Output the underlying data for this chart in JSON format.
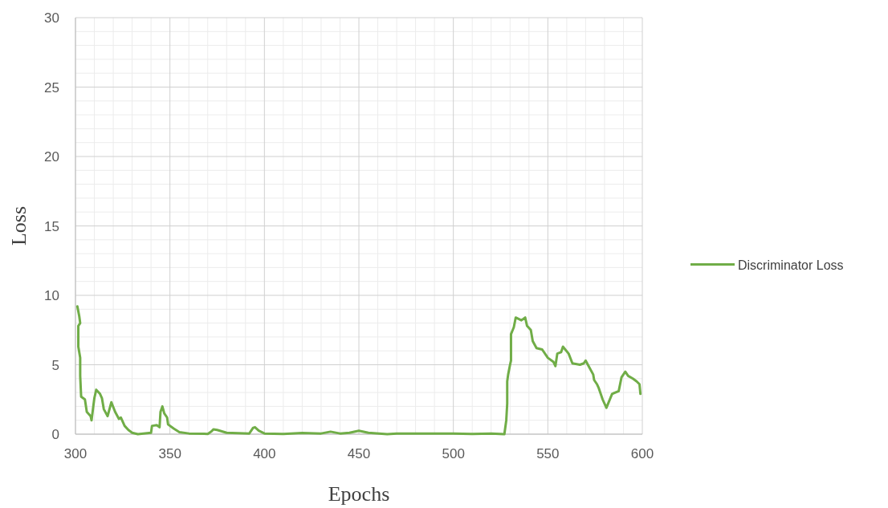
{
  "chart_data": {
    "type": "line",
    "xlabel": "Epochs",
    "ylabel": "Loss",
    "xlim": [
      300,
      600
    ],
    "xticks": [
      300,
      350,
      400,
      450,
      500,
      550,
      600
    ],
    "ylim": [
      0,
      30
    ],
    "yticks": [
      0,
      5,
      10,
      15,
      20,
      25,
      30
    ],
    "grid": true,
    "legend": "right",
    "line_style": "solid",
    "marker": "none",
    "series": [
      {
        "name": "Discriminator Loss",
        "color": "#70ad47",
        "x": [
          301,
          302,
          302.5,
          301.5,
          301.5,
          302.5,
          302.5,
          303,
          305,
          306,
          308,
          308.5,
          310,
          311,
          313,
          314,
          315,
          317,
          319,
          321,
          323,
          324,
          326,
          328,
          330,
          333,
          340,
          340.5,
          343,
          344.5,
          345,
          346,
          347,
          348.5,
          349,
          352,
          355,
          360,
          370,
          372,
          373,
          375,
          380,
          392,
          394,
          395,
          397,
          400,
          410,
          420,
          430,
          435,
          440,
          445,
          450,
          455,
          465,
          470,
          500,
          510,
          520,
          527,
          528,
          528.5,
          528.5,
          529,
          530,
          530.5,
          530.5,
          532,
          533,
          536,
          538,
          539,
          541,
          542,
          544,
          547,
          550,
          553,
          554,
          555,
          557,
          558,
          561,
          563,
          567,
          569,
          570,
          572,
          574,
          574.5,
          576,
          577,
          579,
          581,
          584,
          587.5,
          589,
          591,
          592.5,
          595,
          597,
          598.5,
          599
        ],
        "values": [
          9.2,
          8.5,
          8.0,
          7.8,
          6.3,
          5.5,
          4.2,
          2.7,
          2.5,
          1.6,
          1.3,
          1.0,
          2.6,
          3.2,
          2.9,
          2.6,
          1.8,
          1.3,
          2.3,
          1.6,
          1.1,
          1.2,
          0.6,
          0.3,
          0.1,
          0,
          0.1,
          0.6,
          0.65,
          0.5,
          1.6,
          2.0,
          1.5,
          1.2,
          0.7,
          0.4,
          0.15,
          0.05,
          0.02,
          0.2,
          0.35,
          0.3,
          0.1,
          0.05,
          0.45,
          0.5,
          0.25,
          0.05,
          0.02,
          0.08,
          0.05,
          0.18,
          0.05,
          0.1,
          0.25,
          0.1,
          0,
          0.05,
          0.05,
          0.02,
          0.05,
          0,
          1,
          2.2,
          3.8,
          4.3,
          5,
          5.3,
          7.2,
          7.7,
          8.4,
          8.2,
          8.4,
          7.8,
          7.5,
          6.7,
          6.2,
          6.1,
          5.5,
          5.2,
          4.9,
          5.8,
          5.9,
          6.3,
          5.8,
          5.1,
          5.0,
          5.1,
          5.3,
          4.8,
          4.3,
          3.9,
          3.6,
          3.3,
          2.5,
          1.9,
          2.9,
          3.1,
          4.1,
          4.5,
          4.2,
          4.0,
          3.8,
          3.6,
          2.9
        ]
      }
    ]
  }
}
